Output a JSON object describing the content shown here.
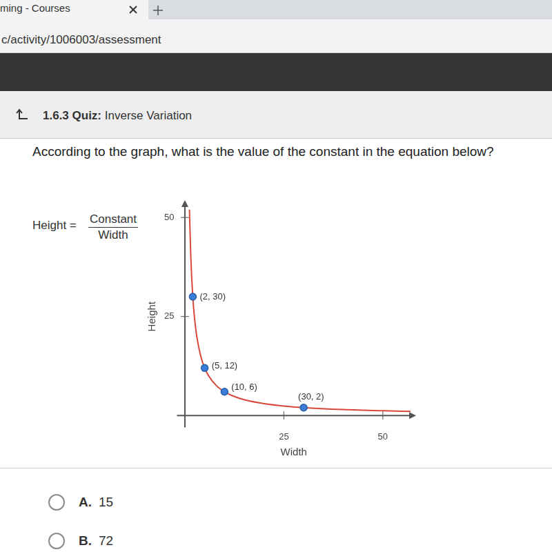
{
  "page": {
    "tab": "ming - Courses",
    "url": "c/activity/1006003/assessment",
    "quiz_label": "1.6.3 Quiz:",
    "quiz_title": "Inverse Variation",
    "question": "According to the graph, what is the value of the constant in the equation below?",
    "equation": {
      "lhs": "Height =",
      "numerator": "Constant",
      "denominator": "Width"
    },
    "options": [
      {
        "letter": "A.",
        "value": 15
      },
      {
        "letter": "B.",
        "value": 72
      }
    ]
  },
  "chart_data": {
    "type": "scatter",
    "x_label": "Width",
    "y_label": "Height",
    "xlim": [
      -2,
      57
    ],
    "ylim": [
      -3,
      53
    ],
    "xticks": [
      25,
      50
    ],
    "yticks": [
      25,
      50
    ],
    "grid": false,
    "series": [
      {
        "type": "line",
        "color": "#d9473a",
        "line_style": "solid",
        "x": [
          1.15,
          1.5,
          2,
          2.5,
          3,
          4,
          5,
          6,
          8,
          10,
          12,
          15,
          20,
          25,
          30,
          40,
          50,
          57
        ],
        "values": [
          52,
          40,
          30,
          24,
          20,
          15,
          12,
          10,
          7.5,
          6,
          5,
          4,
          3,
          2.4,
          2,
          1.5,
          1.2,
          1.05
        ]
      },
      {
        "type": "scatter",
        "color": "#3b7dd8",
        "marker": "circle",
        "x": [
          2,
          5,
          10,
          30
        ],
        "values": [
          30,
          12,
          6,
          2
        ],
        "value_labels": [
          "(2, 30)",
          "(5, 12)",
          "(10, 6)",
          "(30, 2)"
        ]
      }
    ]
  }
}
